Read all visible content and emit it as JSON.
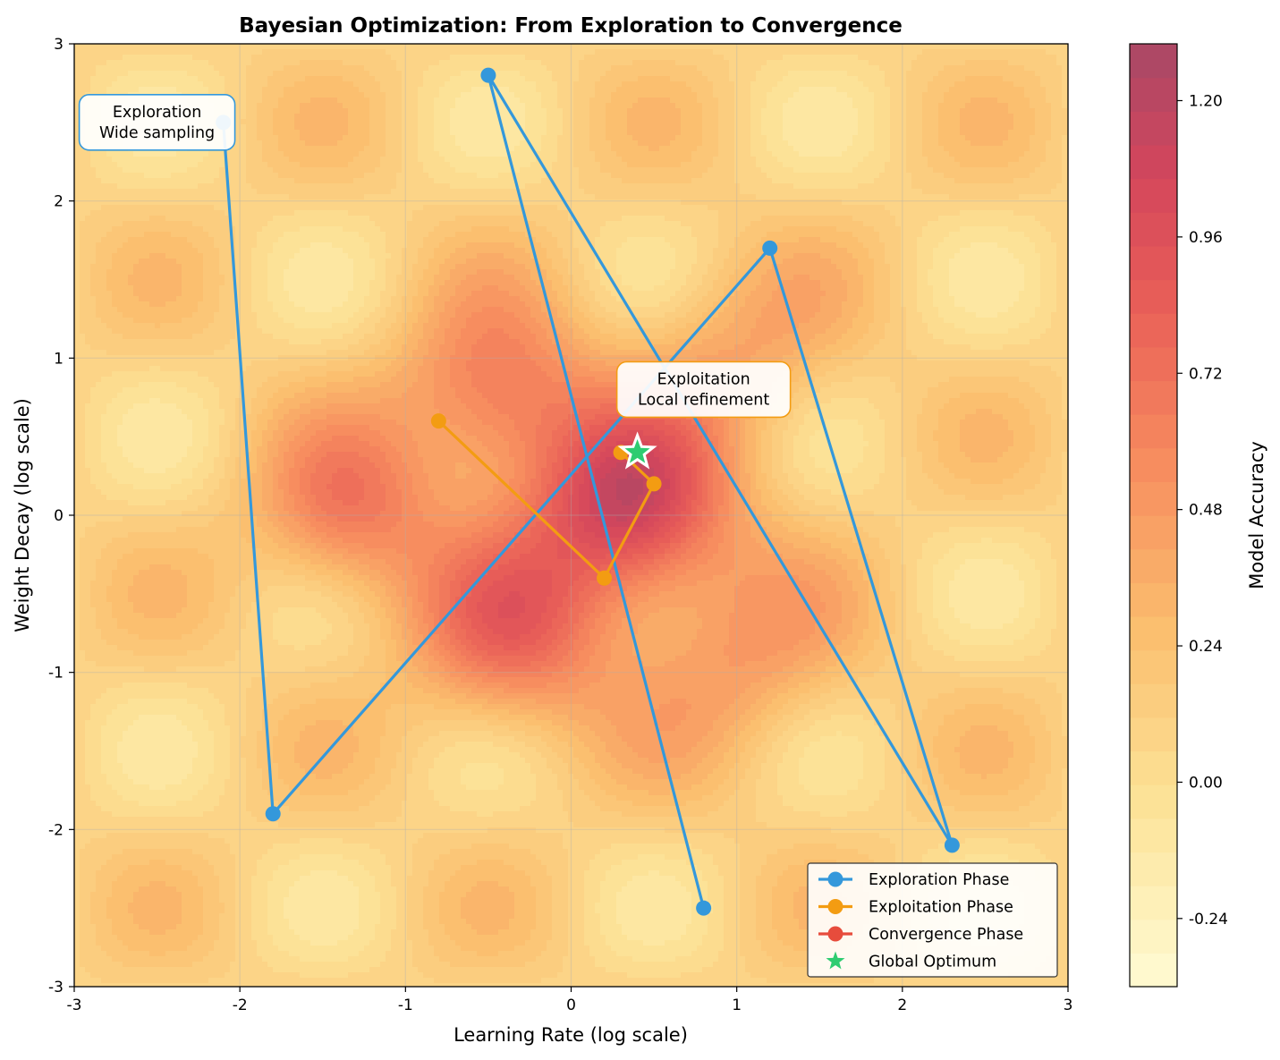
{
  "chart_data": {
    "type": "line",
    "title": "Bayesian Optimization: From Exploration to Convergence",
    "xlabel": "Learning Rate (log scale)",
    "ylabel": "Weight Decay (log scale)",
    "xlim": [
      -3,
      3
    ],
    "ylim": [
      -3,
      3
    ],
    "x_ticks": [
      -3,
      -2,
      -1,
      0,
      1,
      2,
      3
    ],
    "y_ticks": [
      -3,
      -2,
      -1,
      0,
      1,
      2,
      3
    ],
    "grid": true,
    "legend_position": "lower-right",
    "background": {
      "type": "contourf",
      "label": "Model Accuracy",
      "colorscale": "YlOrRd",
      "range": [
        -0.36,
        1.3
      ],
      "colorbar_ticks": [
        -0.24,
        0.0,
        0.24,
        0.48,
        0.72,
        0.96,
        1.2
      ],
      "colorbar_tick_labels": [
        "-0.24",
        "0.00",
        "0.24",
        "0.48",
        "0.72",
        "0.96",
        "1.20"
      ]
    },
    "series": [
      {
        "name": "Exploration Phase",
        "color": "#3498db",
        "x": [
          -2.1,
          -1.8,
          1.2,
          2.3,
          -0.5,
          0.8
        ],
        "y": [
          2.5,
          -1.9,
          1.7,
          -2.1,
          2.8,
          -2.5
        ]
      },
      {
        "name": "Exploitation Phase",
        "color": "#f39c12",
        "x": [
          -0.8,
          0.2,
          0.5,
          0.3
        ],
        "y": [
          0.6,
          -0.4,
          0.2,
          0.4
        ]
      },
      {
        "name": "Convergence Phase",
        "color": "#e74c3c",
        "x": [],
        "y": []
      }
    ],
    "global_optimum": {
      "name": "Global Optimum",
      "color": "#2ecc71",
      "x": 0.4,
      "y": 0.4
    },
    "annotations": [
      {
        "lines": [
          "Exploration",
          "Wide sampling"
        ],
        "x": -2.5,
        "y": 2.5,
        "border_color": "#3498db"
      },
      {
        "lines": [
          "Exploitation",
          "Local refinement"
        ],
        "x": 0.8,
        "y": 0.8,
        "border_color": "#f39c12"
      }
    ]
  }
}
